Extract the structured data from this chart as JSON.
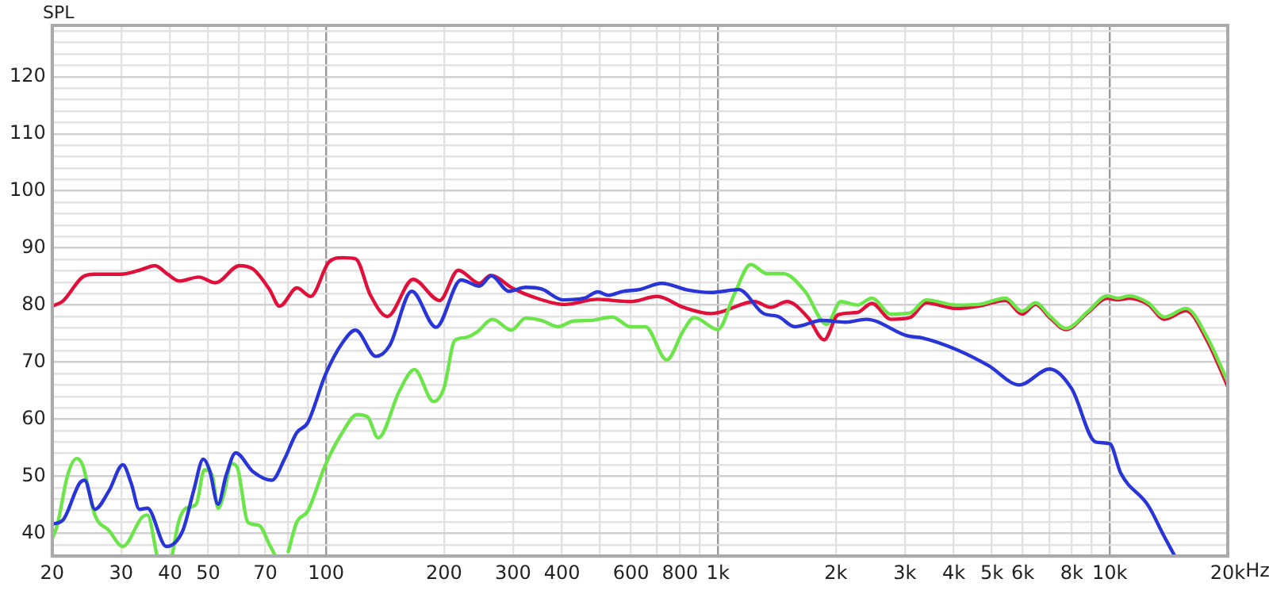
{
  "chart_data": {
    "type": "line",
    "ylabel": "SPL",
    "log": "x",
    "grid": true,
    "legend": false,
    "marker": "none",
    "line_style": "solid",
    "xlim": [
      20,
      20000
    ],
    "ylim": [
      36,
      129
    ],
    "xticks": [
      20,
      30,
      40,
      50,
      {
        "value": 60,
        "label": null
      },
      70,
      {
        "value": 80,
        "label": null
      },
      {
        "value": 90,
        "label": null
      },
      100,
      200,
      300,
      400,
      {
        "value": 500,
        "label": null
      },
      600,
      {
        "value": 700,
        "label": null
      },
      800,
      {
        "value": 900,
        "label": null
      },
      {
        "value": 1000,
        "label": "1k"
      },
      {
        "value": 2000,
        "label": "2k"
      },
      {
        "value": 3000,
        "label": "3k"
      },
      {
        "value": 4000,
        "label": "4k"
      },
      {
        "value": 5000,
        "label": "5k"
      },
      {
        "value": 6000,
        "label": "6k"
      },
      {
        "value": 7000,
        "label": null
      },
      {
        "value": 8000,
        "label": "8k"
      },
      {
        "value": 9000,
        "label": null
      },
      {
        "value": 10000,
        "label": "10k"
      },
      {
        "value": 20000,
        "label": "20k"
      }
    ],
    "xlabel": "Hz",
    "yticks": [
      {
        "value": 38,
        "label": null
      },
      40,
      {
        "value": 42,
        "label": null
      },
      {
        "value": 44,
        "label": null
      },
      {
        "value": 46,
        "label": null
      },
      {
        "value": 48,
        "label": null
      },
      50,
      {
        "value": 52,
        "label": null
      },
      {
        "value": 54,
        "label": null
      },
      {
        "value": 56,
        "label": null
      },
      {
        "value": 58,
        "label": null
      },
      60,
      {
        "value": 62,
        "label": null
      },
      {
        "value": 64,
        "label": null
      },
      {
        "value": 66,
        "label": null
      },
      {
        "value": 68,
        "label": null
      },
      70,
      {
        "value": 72,
        "label": null
      },
      {
        "value": 74,
        "label": null
      },
      {
        "value": 76,
        "label": null
      },
      {
        "value": 78,
        "label": null
      },
      80,
      {
        "value": 82,
        "label": null
      },
      {
        "value": 84,
        "label": null
      },
      {
        "value": 86,
        "label": null
      },
      {
        "value": 88,
        "label": null
      },
      90,
      {
        "value": 92,
        "label": null
      },
      {
        "value": 94,
        "label": null
      },
      {
        "value": 96,
        "label": null
      },
      {
        "value": 98,
        "label": null
      },
      100,
      {
        "value": 102,
        "label": null
      },
      {
        "value": 104,
        "label": null
      },
      {
        "value": 106,
        "label": null
      },
      {
        "value": 108,
        "label": null
      },
      110,
      {
        "value": 112,
        "label": null
      },
      {
        "value": 114,
        "label": null
      },
      {
        "value": 116,
        "label": null
      },
      {
        "value": 118,
        "label": null
      },
      120,
      {
        "value": 122,
        "label": null
      },
      {
        "value": 124,
        "label": null
      },
      {
        "value": 126,
        "label": null
      },
      {
        "value": 128,
        "label": null
      }
    ],
    "series": [
      {
        "color": "#2a35d8",
        "x": [
          20,
          21.3,
          23.5,
          24.2,
          25.7,
          27.9,
          30.3,
          31.8,
          33.4,
          35,
          39.1,
          43.1,
          45.9,
          48.6,
          50.4,
          53,
          55.6,
          58.8,
          65.1,
          72.7,
          78.3,
          84.1,
          89.8,
          99.6,
          109.9,
          118.9,
          134,
          145.3,
          165.4,
          190.8,
          221,
          246,
          264,
          293,
          323,
          355,
          402,
          456,
          494,
          525,
          573,
          630,
          718,
          842,
          960,
          1130,
          1308,
          1424,
          1570,
          1840,
          2120,
          2390,
          3040,
          3340,
          4060,
          4900,
          5880,
          7020,
          8000,
          9200,
          10000,
          10670,
          12520,
          13780,
          14600
        ],
        "values": [
          41.6,
          42.3,
          48.8,
          49.3,
          44.2,
          47.4,
          52,
          48.8,
          44.2,
          44.4,
          37.7,
          40.5,
          47.4,
          53,
          51.1,
          45.1,
          50.2,
          54.1,
          50.8,
          49.3,
          53,
          57.6,
          59.4,
          67.8,
          73.3,
          75.6,
          71,
          72.9,
          82.4,
          76.1,
          84.4,
          83.3,
          85.1,
          82.4,
          83.1,
          82.8,
          80.9,
          81.2,
          82.3,
          81.7,
          82.4,
          82.7,
          83.8,
          82.6,
          82.2,
          82.7,
          78.5,
          78,
          76.2,
          77.3,
          77,
          77.5,
          74.6,
          74.2,
          72.2,
          69.4,
          66,
          68.8,
          65.3,
          56,
          55.7,
          50.5,
          44.9,
          39.4,
          36.2
        ]
      },
      {
        "color": "#6be54a",
        "x": [
          20,
          20.6,
          21.9,
          23.1,
          23.9,
          25.7,
          27.9,
          30.3,
          33.9,
          35,
          37,
          38.5,
          40.5,
          42,
          43.9,
          46.6,
          48.9,
          51.2,
          53,
          54.7,
          57.4,
          59.3,
          63.2,
          67.4,
          71.6,
          74,
          77,
          80.1,
          84.1,
          89.8,
          99.6,
          109.9,
          119.9,
          127.6,
          135.8,
          154,
          168,
          188,
          200,
          213,
          227,
          242,
          266,
          297,
          323,
          355,
          391,
          428,
          472,
          538,
          597,
          653,
          740,
          816,
          870,
          1000,
          1101,
          1212,
          1334,
          1468,
          1668,
          1895,
          2058,
          2270,
          2470,
          2765,
          3090,
          3400,
          4060,
          4620,
          5420,
          5970,
          6470,
          7020,
          7730,
          8800,
          9840,
          10500,
          11200,
          12520,
          13780,
          15650,
          17770,
          20000
        ],
        "values": [
          39.1,
          41.4,
          50.2,
          53.1,
          52,
          43.2,
          40.5,
          37.7,
          42.8,
          43.2,
          36.2,
          null,
          36.2,
          41.9,
          44.4,
          45.1,
          51.1,
          50.2,
          44.4,
          46.5,
          52.2,
          51.6,
          41.9,
          41.4,
          38.1,
          36.2,
          null,
          36.8,
          41.9,
          43.9,
          52,
          57.6,
          60.8,
          60.4,
          56.7,
          65,
          68.7,
          63.1,
          65.5,
          73.8,
          74.3,
          75.2,
          77.5,
          75.6,
          77.7,
          77.3,
          76.2,
          77.2,
          77.3,
          77.9,
          76.2,
          76.2,
          70.4,
          75.5,
          77.8,
          75.7,
          81.9,
          87.1,
          85.5,
          85.5,
          82.4,
          76.6,
          80.6,
          80,
          81.2,
          78.4,
          78.6,
          80.9,
          80,
          80.1,
          81.2,
          78.9,
          80.4,
          78.1,
          75.9,
          78.9,
          81.6,
          81.2,
          81.6,
          80.4,
          77.9,
          79.4,
          74.2,
          66.5
        ]
      },
      {
        "color": "#e0103a",
        "x": [
          20,
          21.3,
          23.9,
          25.7,
          30,
          33.4,
          36.6,
          39.4,
          42.2,
          47.3,
          52.2,
          60.1,
          65.1,
          71.6,
          76.1,
          84.3,
          91.3,
          101.6,
          109.9,
          118.9,
          129.8,
          143.3,
          166.8,
          194.8,
          217.5,
          246,
          262.9,
          300,
          335,
          406,
          492,
          597,
          700,
          816,
          960,
          1009,
          1240,
          1363,
          1500,
          1698,
          1867,
          2025,
          2270,
          2470,
          2765,
          3090,
          3400,
          4060,
          4620,
          5420,
          5970,
          6470,
          7020,
          7730,
          8800,
          9840,
          10500,
          11200,
          12520,
          13780,
          15650,
          17770,
          20000
        ],
        "values": [
          79.8,
          80.7,
          84.9,
          85.4,
          85.4,
          86.1,
          86.9,
          85.4,
          84.2,
          84.9,
          83.9,
          86.9,
          86.3,
          82.8,
          79.8,
          83,
          81.5,
          87.5,
          88.3,
          88.1,
          81.7,
          78,
          84.5,
          80.8,
          86.1,
          83.8,
          85.2,
          82.9,
          81.5,
          80.1,
          81,
          80.6,
          81.5,
          79.6,
          78.5,
          78.7,
          80.6,
          79.6,
          80.6,
          77.8,
          73.9,
          78.3,
          78.7,
          80.3,
          77.5,
          77.8,
          80.4,
          79.4,
          79.8,
          80.8,
          78.4,
          80.1,
          77.8,
          75.7,
          78.7,
          81.2,
          80.9,
          81.2,
          80.1,
          77.5,
          79,
          73.6,
          65.7
        ]
      }
    ]
  }
}
